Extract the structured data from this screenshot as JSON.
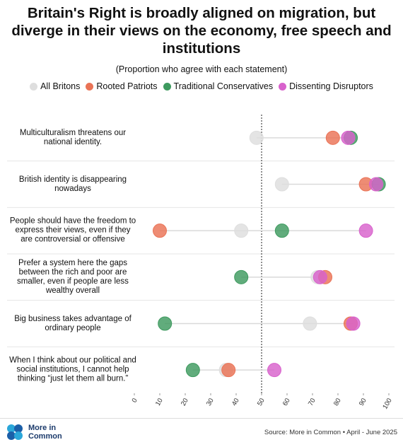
{
  "chart_data": {
    "type": "dot",
    "title": "Britain's Right is broadly aligned on migration, but diverge in their views on the economy, free speech and institutions",
    "subtitle": "(Proportion who agree with each statement)",
    "categories": [
      "Multiculturalism threatens our national identity.",
      "British identity is disappearing nowadays",
      "People should have the freedom to express their views, even if they are controversial or offensive",
      "Prefer a system here the gaps between the rich and poor are smaller, even if people are less wealthy overall",
      "Big business takes advantage of ordinary people",
      "When I think about our political and social institutions, I cannot help thinking “just let them all burn.”"
    ],
    "series": [
      {
        "name": "All Britons",
        "color": "#dedede",
        "values": [
          48,
          58,
          42,
          72,
          69,
          36
        ]
      },
      {
        "name": "Rooted Patriots",
        "color": "#ea7356",
        "values": [
          78,
          91,
          10,
          75,
          85,
          37
        ]
      },
      {
        "name": "Traditional Conservatives",
        "color": "#3e9a5f",
        "values": [
          85,
          96,
          58,
          42,
          12,
          23
        ]
      },
      {
        "name": "Dissenting Disruptors",
        "color": "#d862cc",
        "values": [
          84,
          95,
          91,
          73,
          86,
          55
        ]
      }
    ],
    "xlim": [
      0,
      100
    ],
    "xticks": [
      0,
      10,
      20,
      30,
      40,
      50,
      60,
      70,
      80,
      90,
      100
    ],
    "reference_x": 50,
    "logo": "More in Common",
    "source": "Source: More in Common • April - June 2025"
  }
}
